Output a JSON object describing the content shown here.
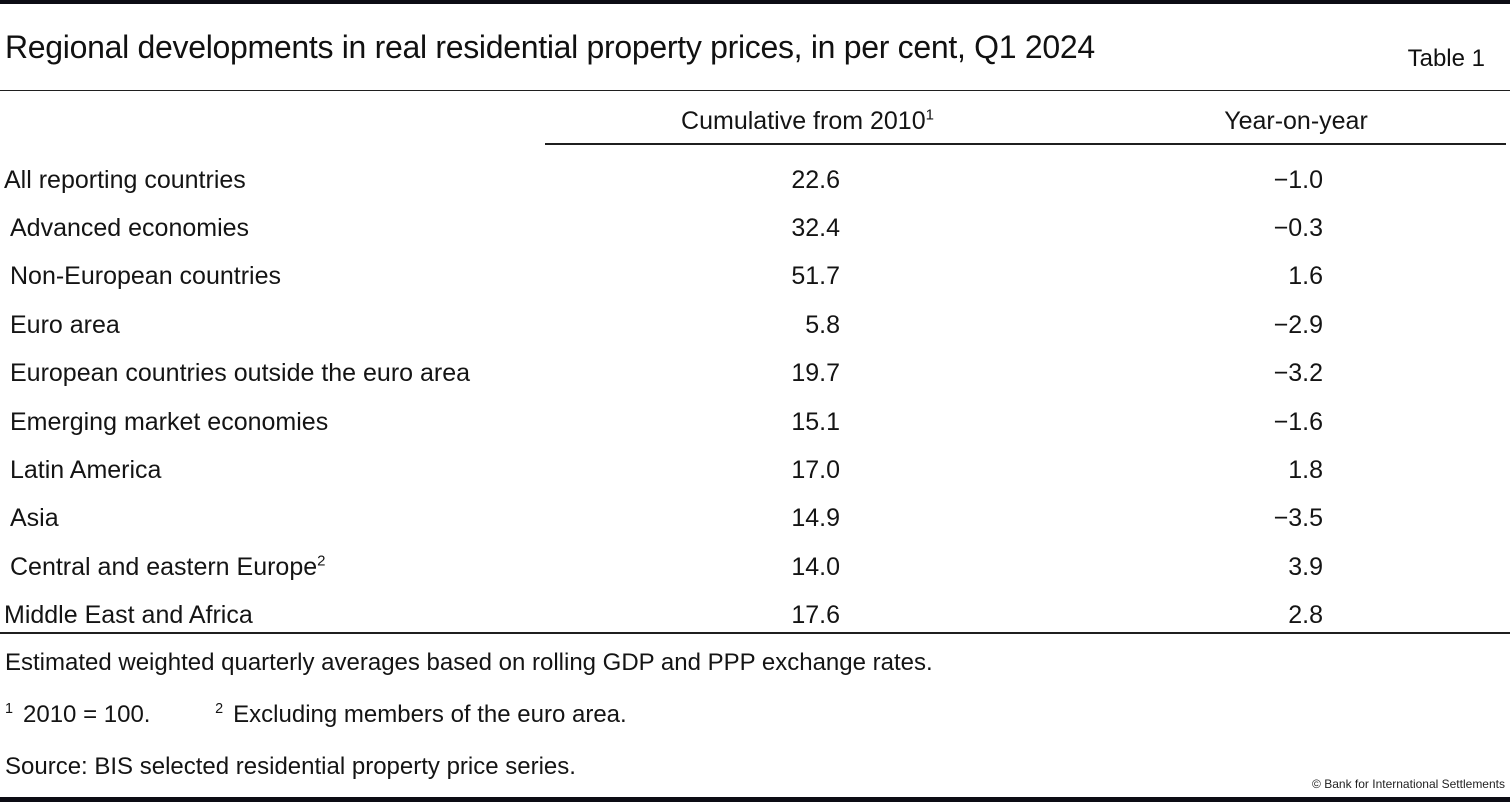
{
  "page": {
    "title": "Regional developments in real residential property prices, in per cent, Q1 2024",
    "table_label": "Table 1",
    "copyright": "© Bank for International Settlements"
  },
  "colors": {
    "border_bars": "#0c0c14",
    "rules": "#1f1f1f",
    "text": "#141414",
    "background": "#ffffff"
  },
  "table": {
    "columns": [
      {
        "label": "Cumulative from 2010",
        "sup": "1"
      },
      {
        "label": "Year-on-year",
        "sup": ""
      }
    ],
    "rows": [
      {
        "label": "All reporting countries",
        "sup": "",
        "indent": false,
        "cumulative": "22.6",
        "yoy": "−1.0"
      },
      {
        "label": "Advanced economies",
        "sup": "",
        "indent": true,
        "cumulative": "32.4",
        "yoy": "−0.3"
      },
      {
        "label": "Non-European countries",
        "sup": "",
        "indent": true,
        "cumulative": "51.7",
        "yoy": "1.6"
      },
      {
        "label": "Euro area",
        "sup": "",
        "indent": true,
        "cumulative": "5.8",
        "yoy": "−2.9"
      },
      {
        "label": "European countries outside the euro area",
        "sup": "",
        "indent": true,
        "cumulative": "19.7",
        "yoy": "−3.2"
      },
      {
        "label": "Emerging market economies",
        "sup": "",
        "indent": true,
        "cumulative": "15.1",
        "yoy": "−1.6"
      },
      {
        "label": "Latin America",
        "sup": "",
        "indent": true,
        "cumulative": "17.0",
        "yoy": "1.8"
      },
      {
        "label": "Asia",
        "sup": "",
        "indent": true,
        "cumulative": "14.9",
        "yoy": "−3.5"
      },
      {
        "label": "Central and eastern Europe",
        "sup": "2",
        "indent": true,
        "cumulative": "14.0",
        "yoy": "3.9"
      },
      {
        "label": "Middle East and Africa",
        "sup": "",
        "indent": false,
        "cumulative": "17.6",
        "yoy": "2.8"
      }
    ],
    "note": "Estimated weighted quarterly averages based on rolling GDP and PPP exchange rates.",
    "footnotes": [
      {
        "sup": "1",
        "text": "2010 = 100."
      },
      {
        "sup": "2",
        "text": "Excluding members of the euro area."
      }
    ],
    "source": "Source: BIS selected residential property price series."
  },
  "chart_data": {
    "type": "table",
    "title": "Regional developments in real residential property prices, in per cent, Q1 2024",
    "columns": [
      "Region",
      "Cumulative from 2010 (2010 = 100)",
      "Year-on-year"
    ],
    "rows": [
      [
        "All reporting countries",
        22.6,
        -1.0
      ],
      [
        "Advanced economies",
        32.4,
        -0.3
      ],
      [
        "Non-European countries",
        51.7,
        1.6
      ],
      [
        "Euro area",
        5.8,
        -2.9
      ],
      [
        "European countries outside the euro area",
        19.7,
        -3.2
      ],
      [
        "Emerging market economies",
        15.1,
        -1.6
      ],
      [
        "Latin America",
        17.0,
        1.8
      ],
      [
        "Asia",
        14.9,
        -3.5
      ],
      [
        "Central and eastern Europe (excluding members of the euro area)",
        14.0,
        3.9
      ],
      [
        "Middle East and Africa",
        17.6,
        2.8
      ]
    ],
    "units": "per cent",
    "note": "Estimated weighted quarterly averages based on rolling GDP and PPP exchange rates.",
    "source": "BIS selected residential property price series"
  }
}
